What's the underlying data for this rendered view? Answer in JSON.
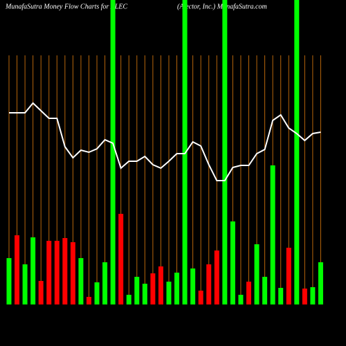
{
  "chart_data": {
    "type": "bar",
    "title": "MunafaSutra  Money Flow  Charts for ALEC",
    "subtitle": "(Alector,  Inc.) MunafaSutra.com",
    "categories": [
      null,
      null,
      null,
      null,
      null,
      null,
      null,
      null,
      null,
      null,
      null,
      null,
      null,
      null,
      null,
      null,
      null,
      null,
      null,
      null,
      null,
      null,
      null,
      null,
      null,
      null,
      null,
      null,
      null,
      null,
      null,
      null,
      null,
      null,
      null,
      null,
      null,
      null,
      null,
      null
    ],
    "values": [
      67,
      100,
      58,
      97,
      34,
      92,
      92,
      96,
      90,
      67,
      11,
      32,
      61,
      440,
      131,
      14,
      40,
      30,
      45,
      55,
      33,
      46,
      440,
      52,
      20,
      58,
      78,
      440,
      120,
      14,
      33,
      87,
      40,
      201,
      24,
      82,
      440,
      23,
      25,
      61
    ],
    "colors": [
      "#00ff00",
      "#ff0000",
      "#00ff00",
      "#00ff00",
      "#ff0000",
      "#ff0000",
      "#ff0000",
      "#ff0000",
      "#ff0000",
      "#00ff00",
      "#ff0000",
      "#00ff00",
      "#00ff00",
      "#00ff00",
      "#ff0000",
      "#00ff00",
      "#00ff00",
      "#00ff00",
      "#ff0000",
      "#ff0000",
      "#00ff00",
      "#00ff00",
      "#00ff00",
      "#00ff00",
      "#ff0000",
      "#ff0000",
      "#ff0000",
      "#00ff00",
      "#00ff00",
      "#00ff00",
      "#ff0000",
      "#00ff00",
      "#00ff00",
      "#00ff00",
      "#00ff00",
      "#ff0000",
      "#00ff00",
      "#ff0000",
      "#00ff00",
      "#00ff00"
    ],
    "line_values": [
      277,
      277,
      277,
      291,
      280,
      269,
      269,
      228,
      212,
      223,
      220,
      225,
      238,
      233,
      197,
      207,
      207,
      214,
      202,
      197,
      207,
      218,
      218,
      235,
      229,
      202,
      179,
      179,
      198,
      201,
      201,
      218,
      224,
      266,
      274,
      255,
      247,
      237,
      247,
      249
    ],
    "line_color": "#ffffff",
    "ylim": [
      0,
      440
    ]
  }
}
